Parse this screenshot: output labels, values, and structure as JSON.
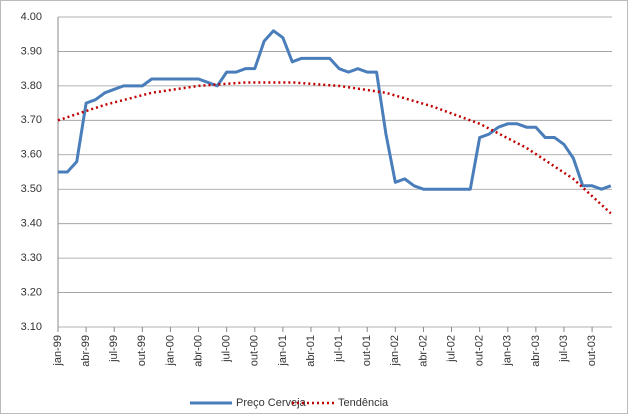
{
  "chart_data": {
    "type": "line",
    "categories": [
      "jan-99",
      null,
      null,
      "abr-99",
      null,
      null,
      "jul-99",
      null,
      null,
      "out-99",
      null,
      null,
      "jan-00",
      null,
      null,
      "abr-00",
      null,
      null,
      "jul-00",
      null,
      null,
      "out-00",
      null,
      null,
      "jan-01",
      null,
      null,
      "abr-01",
      null,
      null,
      "jul-01",
      null,
      null,
      "out-01",
      null,
      null,
      "jan-02",
      null,
      null,
      "abr-02",
      null,
      null,
      "jul-02",
      null,
      null,
      "out-02",
      null,
      null,
      "jan-03",
      null,
      null,
      "abr-03",
      null,
      null,
      "jul-03",
      null,
      null,
      "out-03",
      null,
      null
    ],
    "series": [
      {
        "name": "Preço Cerveja",
        "color": "#4a7ebb",
        "line_style": "solid",
        "values": [
          3.55,
          3.55,
          3.58,
          3.75,
          3.76,
          3.78,
          3.79,
          3.8,
          3.8,
          3.8,
          3.82,
          3.82,
          3.82,
          3.82,
          3.82,
          3.82,
          3.81,
          3.8,
          3.84,
          3.84,
          3.85,
          3.85,
          3.93,
          3.96,
          3.94,
          3.87,
          3.88,
          3.88,
          3.88,
          3.88,
          3.85,
          3.84,
          3.85,
          3.84,
          3.84,
          3.66,
          3.52,
          3.53,
          3.51,
          3.5,
          3.5,
          3.5,
          3.5,
          3.5,
          3.5,
          3.65,
          3.66,
          3.68,
          3.69,
          3.69,
          3.68,
          3.68,
          3.65,
          3.65,
          3.63,
          3.59,
          3.51,
          3.51,
          3.5,
          3.51
        ]
      },
      {
        "name": "Tendência",
        "color": "#c00000",
        "line_style": "dotted",
        "values": [
          3.7,
          3.709,
          3.718,
          3.727,
          3.736,
          3.745,
          3.752,
          3.759,
          3.766,
          3.773,
          3.78,
          3.784,
          3.788,
          3.792,
          3.796,
          3.8,
          3.802,
          3.804,
          3.806,
          3.808,
          3.81,
          3.81,
          3.81,
          3.81,
          3.81,
          3.81,
          3.808,
          3.806,
          3.804,
          3.802,
          3.8,
          3.796,
          3.792,
          3.788,
          3.784,
          3.78,
          3.772,
          3.764,
          3.756,
          3.748,
          3.74,
          3.73,
          3.72,
          3.71,
          3.7,
          3.69,
          3.676,
          3.662,
          3.648,
          3.634,
          3.62,
          3.602,
          3.584,
          3.566,
          3.548,
          3.53,
          3.505,
          3.48,
          3.455,
          3.43
        ]
      }
    ],
    "ylim": [
      3.1,
      4.0
    ],
    "yticks": [
      {
        "value": 3.1,
        "label": "3.10"
      },
      {
        "value": 3.2,
        "label": "3.20"
      },
      {
        "value": 3.3,
        "label": "3.30"
      },
      {
        "value": 3.4,
        "label": "3.40"
      },
      {
        "value": 3.5,
        "label": "3.50"
      },
      {
        "value": 3.6,
        "label": "3.60"
      },
      {
        "value": 3.7,
        "label": "3.70"
      },
      {
        "value": 3.8,
        "label": "3.80"
      },
      {
        "value": 3.9,
        "label": "3.90"
      },
      {
        "value": 4.0,
        "label": "4.00"
      }
    ],
    "grid": true,
    "legend": "bottom"
  }
}
